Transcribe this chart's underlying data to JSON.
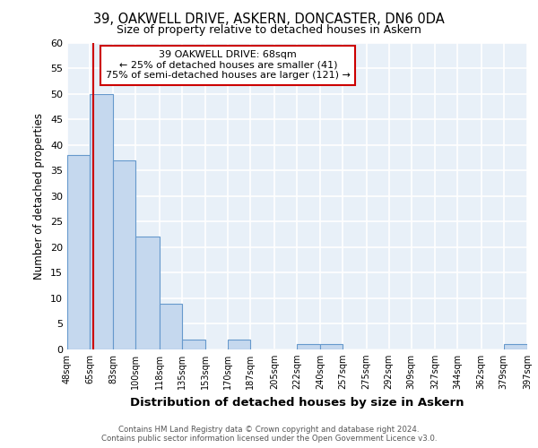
{
  "title1": "39, OAKWELL DRIVE, ASKERN, DONCASTER, DN6 0DA",
  "title2": "Size of property relative to detached houses in Askern",
  "xlabel": "Distribution of detached houses by size in Askern",
  "ylabel": "Number of detached properties",
  "bin_edges": [
    48,
    65,
    83,
    100,
    118,
    135,
    153,
    170,
    187,
    205,
    222,
    240,
    257,
    275,
    292,
    309,
    327,
    344,
    362,
    379,
    397
  ],
  "bar_heights": [
    38,
    50,
    37,
    22,
    9,
    2,
    0,
    2,
    0,
    0,
    1,
    1,
    0,
    0,
    0,
    0,
    0,
    0,
    0,
    1
  ],
  "bar_color": "#c5d8ee",
  "bar_edgecolor": "#6699cc",
  "property_size": 68,
  "vline_color": "#cc0000",
  "ylim": [
    0,
    60
  ],
  "yticks": [
    0,
    5,
    10,
    15,
    20,
    25,
    30,
    35,
    40,
    45,
    50,
    55,
    60
  ],
  "annotation_line1": "39 OAKWELL DRIVE: 68sqm",
  "annotation_line2": "← 25% of detached houses are smaller (41)",
  "annotation_line3": "75% of semi-detached houses are larger (121) →",
  "annotation_box_edgecolor": "#cc0000",
  "footer_text": "Contains HM Land Registry data © Crown copyright and database right 2024.\nContains public sector information licensed under the Open Government Licence v3.0.",
  "background_color": "#e8f0f8",
  "grid_color": "#ffffff",
  "tick_labels": [
    "48sqm",
    "65sqm",
    "83sqm",
    "100sqm",
    "118sqm",
    "135sqm",
    "153sqm",
    "170sqm",
    "187sqm",
    "205sqm",
    "222sqm",
    "240sqm",
    "257sqm",
    "275sqm",
    "292sqm",
    "309sqm",
    "327sqm",
    "344sqm",
    "362sqm",
    "379sqm",
    "397sqm"
  ]
}
